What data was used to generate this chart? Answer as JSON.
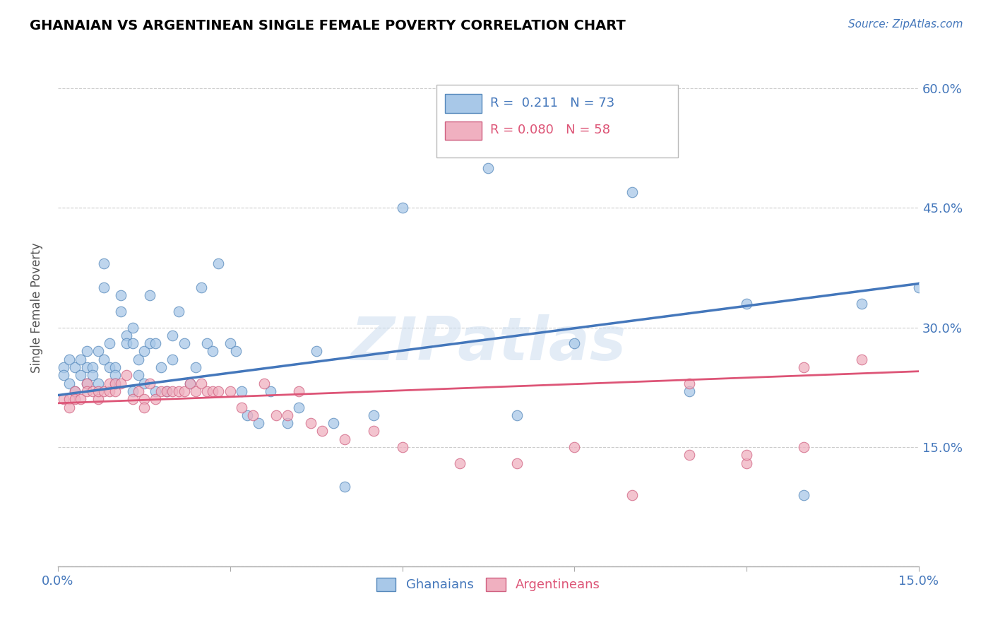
{
  "title": "GHANAIAN VS ARGENTINEAN SINGLE FEMALE POVERTY CORRELATION CHART",
  "source_text": "Source: ZipAtlas.com",
  "ylabel": "Single Female Poverty",
  "xlim": [
    0.0,
    0.15
  ],
  "ylim": [
    0.0,
    0.65
  ],
  "ytick_positions": [
    0.0,
    0.15,
    0.3,
    0.45,
    0.6
  ],
  "ytick_labels": [
    "",
    "15.0%",
    "30.0%",
    "45.0%",
    "60.0%"
  ],
  "blue_fill": "#a8c8e8",
  "blue_edge": "#5588bb",
  "pink_fill": "#f0b0c0",
  "pink_edge": "#d06080",
  "blue_line": "#4477bb",
  "pink_line": "#dd5577",
  "legend_R_blue": "0.211",
  "legend_N_blue": "73",
  "legend_R_pink": "0.080",
  "legend_N_pink": "58",
  "watermark": "ZIPatlas",
  "ghanaian_x": [
    0.001,
    0.001,
    0.002,
    0.002,
    0.003,
    0.003,
    0.004,
    0.004,
    0.005,
    0.005,
    0.005,
    0.006,
    0.006,
    0.007,
    0.007,
    0.008,
    0.008,
    0.008,
    0.009,
    0.009,
    0.01,
    0.01,
    0.01,
    0.011,
    0.011,
    0.012,
    0.012,
    0.013,
    0.013,
    0.013,
    0.014,
    0.014,
    0.015,
    0.015,
    0.016,
    0.016,
    0.017,
    0.017,
    0.018,
    0.019,
    0.02,
    0.02,
    0.021,
    0.022,
    0.023,
    0.024,
    0.025,
    0.026,
    0.027,
    0.028,
    0.03,
    0.031,
    0.032,
    0.033,
    0.035,
    0.037,
    0.04,
    0.042,
    0.045,
    0.048,
    0.05,
    0.055,
    0.06,
    0.07,
    0.075,
    0.08,
    0.09,
    0.1,
    0.11,
    0.12,
    0.13,
    0.14,
    0.15
  ],
  "ghanaian_y": [
    0.25,
    0.24,
    0.26,
    0.23,
    0.25,
    0.22,
    0.26,
    0.24,
    0.27,
    0.25,
    0.23,
    0.25,
    0.24,
    0.27,
    0.23,
    0.38,
    0.35,
    0.26,
    0.28,
    0.25,
    0.25,
    0.24,
    0.23,
    0.34,
    0.32,
    0.29,
    0.28,
    0.28,
    0.22,
    0.3,
    0.26,
    0.24,
    0.27,
    0.23,
    0.34,
    0.28,
    0.28,
    0.22,
    0.25,
    0.22,
    0.26,
    0.29,
    0.32,
    0.28,
    0.23,
    0.25,
    0.35,
    0.28,
    0.27,
    0.38,
    0.28,
    0.27,
    0.22,
    0.19,
    0.18,
    0.22,
    0.18,
    0.2,
    0.27,
    0.18,
    0.1,
    0.19,
    0.45,
    0.55,
    0.5,
    0.19,
    0.28,
    0.47,
    0.22,
    0.33,
    0.09,
    0.33,
    0.35
  ],
  "argentinean_x": [
    0.001,
    0.002,
    0.002,
    0.003,
    0.003,
    0.004,
    0.005,
    0.005,
    0.006,
    0.007,
    0.007,
    0.008,
    0.009,
    0.009,
    0.01,
    0.01,
    0.011,
    0.012,
    0.013,
    0.014,
    0.015,
    0.015,
    0.016,
    0.017,
    0.018,
    0.019,
    0.02,
    0.021,
    0.022,
    0.023,
    0.024,
    0.025,
    0.026,
    0.027,
    0.028,
    0.03,
    0.032,
    0.034,
    0.036,
    0.038,
    0.04,
    0.042,
    0.044,
    0.046,
    0.05,
    0.055,
    0.06,
    0.07,
    0.08,
    0.09,
    0.1,
    0.11,
    0.12,
    0.13,
    0.14,
    0.11,
    0.12,
    0.13
  ],
  "argentinean_y": [
    0.21,
    0.21,
    0.2,
    0.22,
    0.21,
    0.21,
    0.23,
    0.22,
    0.22,
    0.21,
    0.22,
    0.22,
    0.22,
    0.23,
    0.22,
    0.23,
    0.23,
    0.24,
    0.21,
    0.22,
    0.21,
    0.2,
    0.23,
    0.21,
    0.22,
    0.22,
    0.22,
    0.22,
    0.22,
    0.23,
    0.22,
    0.23,
    0.22,
    0.22,
    0.22,
    0.22,
    0.2,
    0.19,
    0.23,
    0.19,
    0.19,
    0.22,
    0.18,
    0.17,
    0.16,
    0.17,
    0.15,
    0.13,
    0.13,
    0.15,
    0.09,
    0.23,
    0.13,
    0.15,
    0.26,
    0.14,
    0.14,
    0.25
  ],
  "blue_line_x0": 0.0,
  "blue_line_y0": 0.215,
  "blue_line_x1": 0.15,
  "blue_line_y1": 0.355,
  "pink_line_x0": 0.0,
  "pink_line_y0": 0.205,
  "pink_line_x1": 0.15,
  "pink_line_y1": 0.245
}
